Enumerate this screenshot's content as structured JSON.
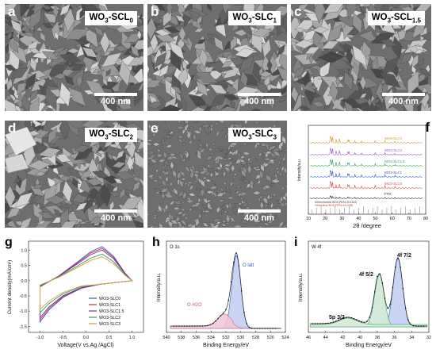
{
  "panels": {
    "a": {
      "letter": "a",
      "name_main": "WO",
      "name_sub1": "3",
      "name_mid": "-SCL",
      "name_sub2": "0",
      "scale": "400 nm"
    },
    "b": {
      "letter": "b",
      "name_main": "WO",
      "name_sub1": "3",
      "name_mid": "-SLC",
      "name_sub2": "1",
      "scale": "400 nm"
    },
    "c": {
      "letter": "c",
      "name_main": "WO",
      "name_sub1": "3",
      "name_mid": "-SCL",
      "name_sub2": "1.5",
      "scale": "400 nm"
    },
    "d": {
      "letter": "d",
      "name_main": "WO",
      "name_sub1": "3",
      "name_mid": "-SLC",
      "name_sub2": "2",
      "scale": "400 nm"
    },
    "e": {
      "letter": "e",
      "name_main": "WO",
      "name_sub1": "3",
      "name_mid": "-SLC",
      "name_sub2": "3",
      "scale": "400 nm"
    }
  },
  "xrd": {
    "letter": "f",
    "xlabel": "2θ /degree",
    "ylabel": "Intensity/a.u.",
    "xticks": [
      "10",
      "20",
      "30",
      "40",
      "50",
      "60",
      "70",
      "80"
    ],
    "series": [
      "WO3-SLC3",
      "WO3-SLC2",
      "WO3-SLC1.5",
      "WO3-SLC1",
      "WO3-SLC0",
      "FTO"
    ],
    "series_colors": [
      "#c89a28",
      "#9a56c8",
      "#2ea25a",
      "#2f55c8",
      "#d84848",
      "#222222"
    ],
    "ref1": "#Orthorhombic WO3 (PDF# 20-1324)",
    "ref2": "*Monoclinic WO3 (PDF# 43-1035)"
  },
  "cv": {
    "letter": "g",
    "xlabel": "Voltage(V vs.Ag /AgCl)",
    "ylabel": "Current density(mA/cm²)",
    "xticks": [
      "-1.0",
      "-0.5",
      "0.0",
      "0.5",
      "1.0"
    ],
    "yticks": [
      "1.0",
      "0.5",
      "0.0",
      "-0.5",
      "-1.0",
      "-1.5"
    ],
    "legend": [
      "WO3-SLC0",
      "WO3-SLC1",
      "WO3-SLC1.5",
      "WO3-SLC2",
      "WO3-SLC3"
    ],
    "legend_colors": [
      "#2f55c8",
      "#c83030",
      "#7a2ea0",
      "#2ea25a",
      "#d8a040"
    ]
  },
  "xps_o": {
    "letter": "h",
    "title": "O 1s",
    "xlabel": "Binding Energy/eV",
    "ylabel": "Intensity/a.u.",
    "xticks": [
      "540",
      "538",
      "536",
      "534",
      "532",
      "530",
      "528",
      "526",
      "524"
    ],
    "peak1": "O latt",
    "peak2": "O H2O"
  },
  "xps_w": {
    "letter": "i",
    "title": "W 4f",
    "xlabel": "Binding Energy/eV",
    "ylabel": "Intensity/a.u.",
    "xticks": [
      "46",
      "44",
      "42",
      "40",
      "38",
      "36",
      "34",
      "32"
    ],
    "peak1": "4f 7/2",
    "peak2": "4f 5/2",
    "peak3": "5p 3/2"
  }
}
